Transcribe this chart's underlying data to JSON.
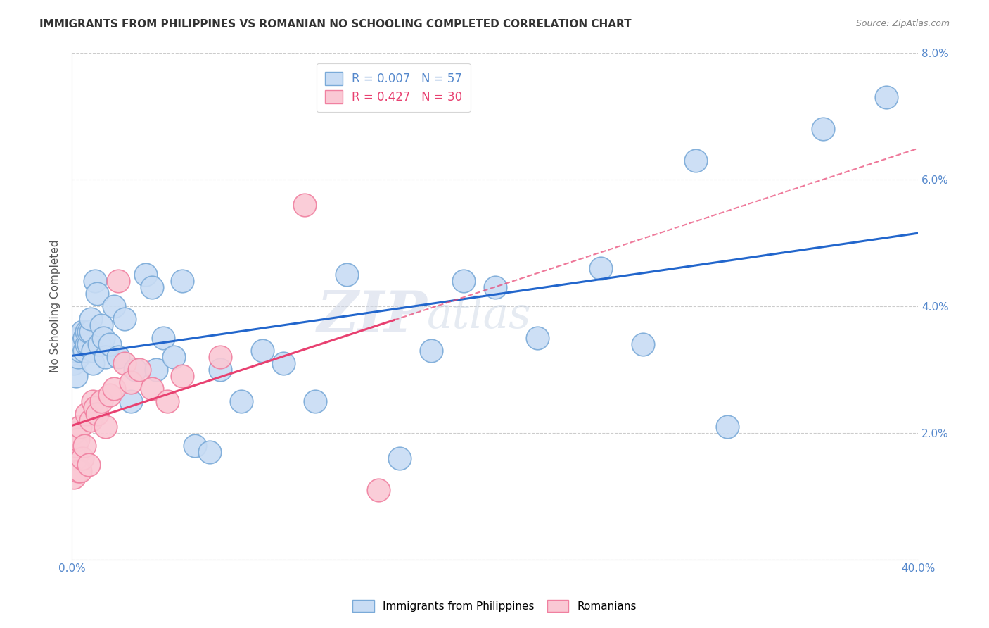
{
  "title": "IMMIGRANTS FROM PHILIPPINES VS ROMANIAN NO SCHOOLING COMPLETED CORRELATION CHART",
  "source": "Source: ZipAtlas.com",
  "ylabel": "No Schooling Completed",
  "watermark_zip": "ZIP",
  "watermark_atlas": "atlas",
  "xlim": [
    0.0,
    0.4
  ],
  "ylim": [
    0.0,
    0.08
  ],
  "xticks": [
    0.0,
    0.4
  ],
  "yticks": [
    0.0,
    0.02,
    0.04,
    0.06,
    0.08
  ],
  "xtick_labels": [
    "0.0%",
    "40.0%"
  ],
  "ytick_labels_right": [
    "",
    "2.0%",
    "4.0%",
    "6.0%",
    "8.0%"
  ],
  "legend_entries": [
    {
      "label": "Immigrants from Philippines",
      "color": "#a8c4e8",
      "R": "0.007",
      "N": "57"
    },
    {
      "label": "Romanians",
      "color": "#f4b8c8",
      "R": "0.427",
      "N": "30"
    }
  ],
  "philippines_x": [
    0.001,
    0.002,
    0.002,
    0.003,
    0.003,
    0.003,
    0.004,
    0.004,
    0.005,
    0.005,
    0.006,
    0.006,
    0.007,
    0.007,
    0.008,
    0.008,
    0.009,
    0.009,
    0.01,
    0.01,
    0.011,
    0.012,
    0.013,
    0.014,
    0.015,
    0.016,
    0.018,
    0.02,
    0.022,
    0.025,
    0.028,
    0.03,
    0.035,
    0.038,
    0.04,
    0.043,
    0.048,
    0.052,
    0.058,
    0.065,
    0.07,
    0.08,
    0.09,
    0.1,
    0.115,
    0.13,
    0.155,
    0.17,
    0.185,
    0.2,
    0.22,
    0.25,
    0.27,
    0.295,
    0.31,
    0.355,
    0.385
  ],
  "philippines_y": [
    0.031,
    0.033,
    0.029,
    0.032,
    0.034,
    0.035,
    0.033,
    0.035,
    0.034,
    0.036,
    0.033,
    0.035,
    0.034,
    0.036,
    0.034,
    0.036,
    0.036,
    0.038,
    0.033,
    0.031,
    0.044,
    0.042,
    0.034,
    0.037,
    0.035,
    0.032,
    0.034,
    0.04,
    0.032,
    0.038,
    0.025,
    0.03,
    0.045,
    0.043,
    0.03,
    0.035,
    0.032,
    0.044,
    0.018,
    0.017,
    0.03,
    0.025,
    0.033,
    0.031,
    0.025,
    0.045,
    0.016,
    0.033,
    0.044,
    0.043,
    0.035,
    0.046,
    0.034,
    0.063,
    0.021,
    0.068,
    0.073
  ],
  "romanians_x": [
    0.001,
    0.001,
    0.002,
    0.002,
    0.003,
    0.003,
    0.004,
    0.004,
    0.005,
    0.006,
    0.007,
    0.008,
    0.009,
    0.01,
    0.011,
    0.012,
    0.014,
    0.016,
    0.018,
    0.02,
    0.022,
    0.025,
    0.028,
    0.032,
    0.038,
    0.045,
    0.052,
    0.07,
    0.11,
    0.145
  ],
  "romanians_y": [
    0.013,
    0.02,
    0.016,
    0.018,
    0.014,
    0.019,
    0.014,
    0.021,
    0.016,
    0.018,
    0.023,
    0.015,
    0.022,
    0.025,
    0.024,
    0.023,
    0.025,
    0.021,
    0.026,
    0.027,
    0.044,
    0.031,
    0.028,
    0.03,
    0.027,
    0.025,
    0.029,
    0.032,
    0.056,
    0.011
  ],
  "philippines_line_color": "#2266cc",
  "romanians_line_color": "#e84070",
  "philippines_dot_facecolor": "#c8dcf4",
  "philippines_dot_edgecolor": "#7aaad8",
  "romanians_dot_facecolor": "#fac8d4",
  "romanians_dot_edgecolor": "#f080a0",
  "grid_color": "#cccccc",
  "background_color": "#ffffff",
  "title_fontsize": 11,
  "tick_label_color": "#5588cc",
  "dot_size": 550
}
